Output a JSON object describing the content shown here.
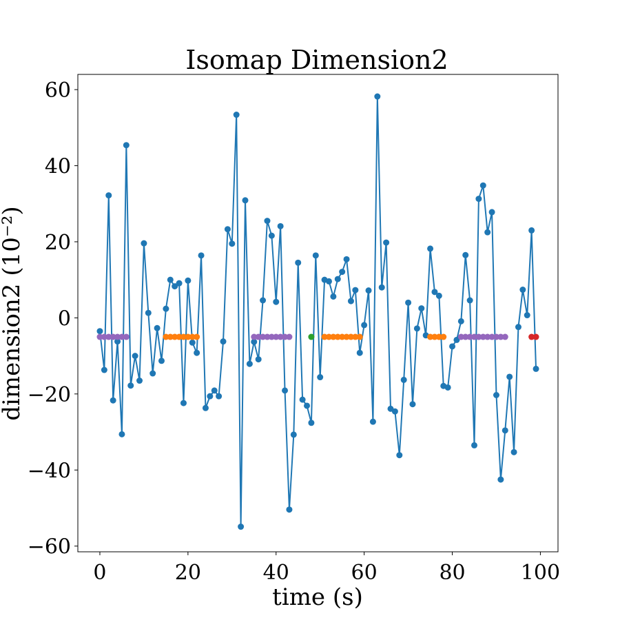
{
  "chart_data": {
    "type": "line",
    "title": "Isomap Dimension2",
    "xlabel": "time (s)",
    "ylabel": "dimension2 (10⁻²)",
    "xlim": [
      -5,
      104
    ],
    "ylim": [
      -61.5,
      64
    ],
    "xticks": [
      0,
      20,
      40,
      60,
      80,
      100
    ],
    "yticks": [
      -60,
      -40,
      -20,
      0,
      20,
      40,
      60
    ],
    "xtick_labels": [
      "0",
      "20",
      "40",
      "60",
      "80",
      "100"
    ],
    "ytick_labels": [
      "−60",
      "−40",
      "−20",
      "0",
      "20",
      "40",
      "60"
    ],
    "grid": false,
    "line_color": "#1f77b4",
    "series": [
      {
        "x": [
          0,
          1,
          2,
          3,
          4,
          5,
          6,
          7,
          8,
          9,
          10,
          11,
          12,
          13,
          14,
          15,
          16,
          17,
          18,
          19,
          20,
          21,
          22,
          23,
          24,
          25,
          26,
          27,
          28,
          29,
          30,
          31,
          32,
          33,
          34,
          35,
          36,
          37,
          38,
          39,
          40,
          41,
          42,
          43,
          44,
          45,
          46,
          47,
          48,
          49,
          50,
          51,
          52,
          53,
          54,
          55,
          56,
          57,
          58,
          59,
          60,
          61,
          62,
          63,
          64,
          65,
          66,
          67,
          68,
          69,
          70,
          71,
          72,
          73,
          74,
          75,
          76,
          77,
          78,
          79,
          80,
          81,
          82,
          83,
          84,
          85,
          86,
          87,
          88,
          89,
          90,
          91,
          92,
          93,
          94,
          95,
          96,
          97,
          98,
          99
        ],
        "values": [
          -3.5,
          -13.7,
          32.2,
          -21.7,
          -6.2,
          -30.6,
          45.4,
          -17.8,
          -10,
          -16.5,
          19.6,
          1.3,
          -14.6,
          -2.7,
          -11.3,
          2.4,
          10,
          8.3,
          9.1,
          -22.4,
          9.8,
          -6.5,
          -9.2,
          16.4,
          -23.7,
          -20.6,
          -19.1,
          -20.6,
          -6.2,
          23.3,
          19.5,
          53.4,
          -54.9,
          30.9,
          -12.1,
          -6.3,
          -10.9,
          4.6,
          25.5,
          21.6,
          4.2,
          24.1,
          -19.1,
          -50.4,
          -30.7,
          14.5,
          -21.5,
          -23.1,
          -27.6,
          16.4,
          -15.6,
          10,
          9.6,
          5.6,
          10.2,
          12.1,
          15.4,
          4.4,
          7.3,
          -9.2,
          -1.9,
          7.2,
          -27.3,
          58.2,
          8,
          19.8,
          -23.9,
          -24.6,
          -36.1,
          -16.3,
          4,
          -22.7,
          -2.8,
          2.5,
          -4.6,
          18.2,
          6.8,
          5.8,
          -17.9,
          -18.3,
          -7.5,
          -5.8,
          -0.9,
          16.5,
          4.6,
          -33.5,
          31.3,
          34.8,
          22.5,
          27.8,
          -20.3,
          -42.5,
          -29.6,
          -15.5,
          -35.3,
          -2.4,
          7.4,
          0.7,
          23,
          -13.4
        ]
      }
    ],
    "markers": [
      {
        "color": "#9467bd",
        "y": -5,
        "x": [
          0,
          1,
          2,
          3,
          4,
          5,
          6
        ]
      },
      {
        "color": "#ff7f0e",
        "y": -5,
        "x": [
          15,
          16,
          17,
          18,
          19,
          20,
          21,
          22
        ]
      },
      {
        "color": "#9467bd",
        "y": -5,
        "x": [
          35,
          36,
          37,
          38,
          39,
          40,
          41,
          42,
          43
        ]
      },
      {
        "color": "#2ca02c",
        "y": -5,
        "x": [
          48
        ]
      },
      {
        "color": "#ff7f0e",
        "y": -5,
        "x": [
          51,
          52,
          53,
          54,
          55,
          56,
          57,
          58,
          59
        ]
      },
      {
        "color": "#ff7f0e",
        "y": -5,
        "x": [
          75,
          76,
          77,
          78
        ]
      },
      {
        "color": "#9467bd",
        "y": -5,
        "x": [
          82,
          83,
          84,
          85,
          86,
          87,
          88,
          89,
          90,
          91,
          92
        ]
      },
      {
        "color": "#d62728",
        "y": -5,
        "x": [
          98,
          99
        ]
      }
    ]
  }
}
